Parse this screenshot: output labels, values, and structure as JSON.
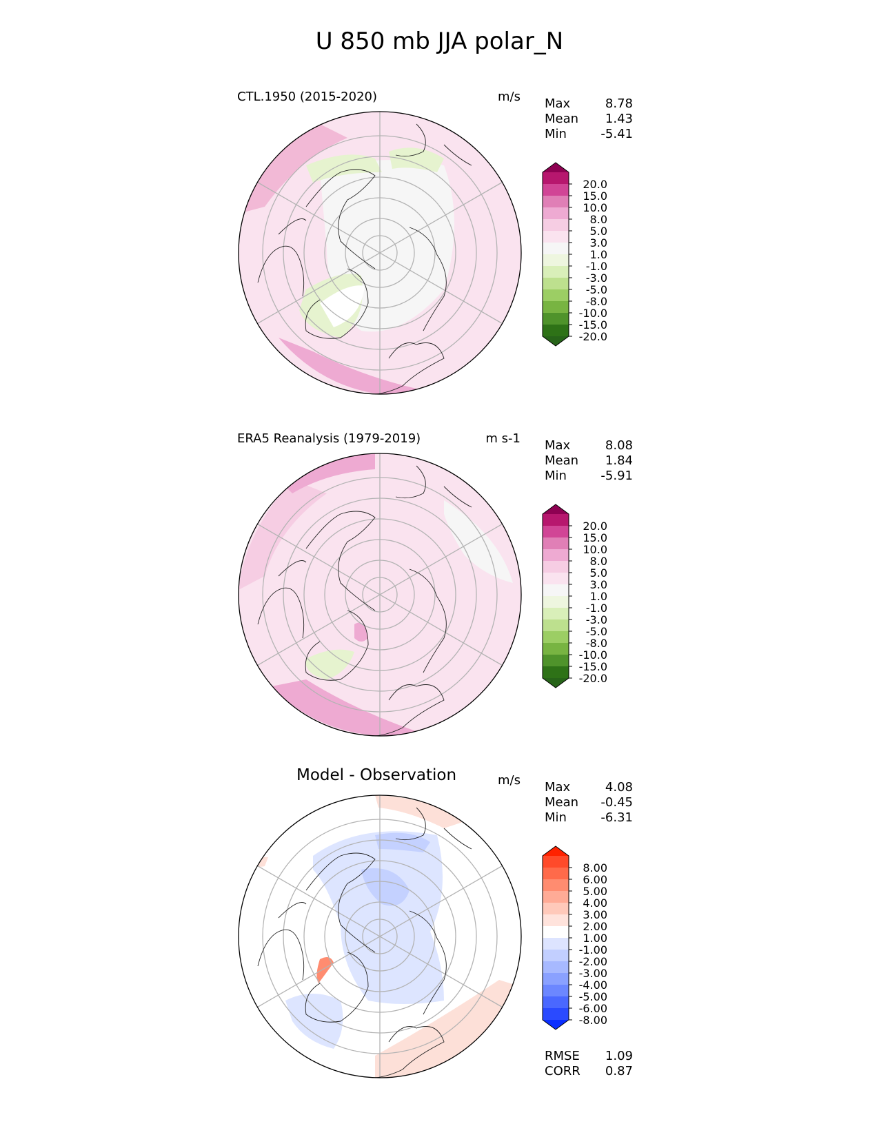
{
  "figure": {
    "title": "U 850 mb JJA polar_N"
  },
  "colors": {
    "pink_land": "#f9dbea",
    "pink_mid": "#f2b9d6",
    "pink_strong": "#e895c2",
    "near_zero": "#f6f6f6",
    "green_light": "#e6f3cf",
    "green_mid": "#c8e5a1",
    "blue_light": "#dde5ff",
    "blue_mid": "#c4d1ff",
    "red_light": "#fde0d8",
    "grid": "#b3b3b3"
  },
  "panels": [
    {
      "title": "CTL.1950 (2015-2020)",
      "units": "m/s",
      "stats": {
        "max_label": "Max",
        "max": "8.78",
        "mean_label": "Mean",
        "mean": "1.43",
        "min_label": "Min",
        "min": "-5.41"
      }
    },
    {
      "title": "ERA5 Reanalysis (1979-2019)",
      "units": "m s-1",
      "stats": {
        "max_label": "Max",
        "max": "8.08",
        "mean_label": "Mean",
        "mean": "1.84",
        "min_label": "Min",
        "min": "-5.91"
      }
    },
    {
      "title": "Model - Observation",
      "units": "m/s",
      "stats": {
        "max_label": "Max",
        "max": "4.08",
        "mean_label": "Mean",
        "mean": "-0.45",
        "min_label": "Min",
        "min": "-6.31"
      },
      "metrics": {
        "rmse_label": "RMSE",
        "rmse": "1.09",
        "corr_label": "CORR",
        "corr": "0.87"
      }
    }
  ],
  "colorbars": {
    "field": {
      "ticks": [
        "20.0",
        "15.0",
        "10.0",
        "8.0",
        "5.0",
        "3.0",
        "1.0",
        "-1.0",
        "-3.0",
        "-5.0",
        "-8.0",
        "-10.0",
        "-15.0",
        "-20.0"
      ],
      "colors": [
        "#8e0152",
        "#b7176e",
        "#d14596",
        "#e07fb6",
        "#eeaad2",
        "#f6cde3",
        "#fae3ef",
        "#f6f6f6",
        "#eef6df",
        "#d9efb9",
        "#bde08e",
        "#9cce64",
        "#78b442",
        "#4f932b",
        "#2e7217",
        "#276419"
      ]
    },
    "diff": {
      "ticks": [
        "8.00",
        "6.00",
        "5.00",
        "4.00",
        "3.00",
        "2.00",
        "1.00",
        "-1.00",
        "-2.00",
        "-3.00",
        "-4.00",
        "-5.00",
        "-6.00",
        "-8.00"
      ],
      "colors": [
        "#ff2200",
        "#ff4a2a",
        "#ff6a4a",
        "#ff8c70",
        "#ffab96",
        "#ffc9ba",
        "#ffe3dc",
        "#ffffff",
        "#dde4ff",
        "#c2cfff",
        "#a7b9ff",
        "#8aa1ff",
        "#6c87ff",
        "#4a68ff",
        "#2a4aff",
        "#0a2eff"
      ]
    }
  }
}
